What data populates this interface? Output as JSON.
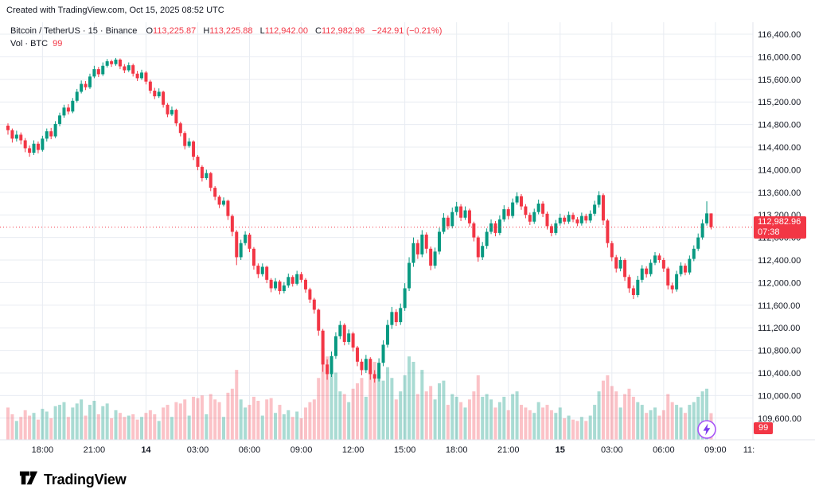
{
  "header": {
    "created_text": "Created with TradingView.com, Oct 15, 2025 08:52 UTC"
  },
  "legend": {
    "title": "Bitcoin / TetherUS · 15 · Binance",
    "o_label": "O",
    "o_value": "113,225.87",
    "h_label": "H",
    "h_value": "113,225.88",
    "l_label": "L",
    "l_value": "112,942.00",
    "c_label": "C",
    "c_value": "112,982.96",
    "change": "−242.91 (−0.21%)",
    "vol_title": "Vol · BTC",
    "vol_value": "99"
  },
  "price_axis": {
    "current_price_label": "112,982.96",
    "countdown": "07:38",
    "volume_badge": "99"
  },
  "footer": {
    "brand": "TradingView"
  },
  "colors": {
    "up": "#089981",
    "down": "#F23645",
    "vol_up": "rgba(8,153,129,0.35)",
    "vol_down": "rgba(242,54,69,0.30)",
    "grid": "#e8ecf2",
    "axis_text": "#131722",
    "border": "#e0e3eb",
    "badge_red": "#F23645",
    "accent_purple": "#9333ea"
  },
  "chart_data": {
    "type": "candlestick",
    "symbol": "Bitcoin / TetherUS",
    "exchange": "Binance",
    "interval": "15m",
    "x_axis_start_utc": "2025-10-13 16:00",
    "minutes_per_candle": 15,
    "ylim": [
      109600,
      116400
    ],
    "grid": true,
    "price_ticks": [
      116400,
      116000,
      115600,
      115200,
      114800,
      114400,
      114000,
      113600,
      113200,
      112800,
      112400,
      112000,
      111600,
      111200,
      110800,
      110400,
      110000,
      109600
    ],
    "time_ticks": [
      {
        "i": 8,
        "label": "18:00",
        "bold": false
      },
      {
        "i": 20,
        "label": "21:00",
        "bold": false
      },
      {
        "i": 32,
        "label": "14",
        "bold": true
      },
      {
        "i": 44,
        "label": "03:00",
        "bold": false
      },
      {
        "i": 56,
        "label": "06:00",
        "bold": false
      },
      {
        "i": 68,
        "label": "09:00",
        "bold": false
      },
      {
        "i": 80,
        "label": "12:00",
        "bold": false
      },
      {
        "i": 92,
        "label": "15:00",
        "bold": false
      },
      {
        "i": 104,
        "label": "18:00",
        "bold": false
      },
      {
        "i": 116,
        "label": "21:00",
        "bold": false
      },
      {
        "i": 128,
        "label": "15",
        "bold": true
      },
      {
        "i": 140,
        "label": "03:00",
        "bold": false
      },
      {
        "i": 152,
        "label": "06:00",
        "bold": false
      },
      {
        "i": 164,
        "label": "09:00",
        "bold": false
      },
      {
        "i": 172,
        "label": "11:",
        "bold": false,
        "grid": false,
        "x": 941
      }
    ],
    "ohlcv_order": [
      "open",
      "high",
      "low",
      "close",
      "volume"
    ],
    "candles": [
      [
        114780,
        114820,
        114620,
        114700,
        120
      ],
      [
        114700,
        114730,
        114480,
        114550,
        95
      ],
      [
        114550,
        114690,
        114500,
        114620,
        70
      ],
      [
        114620,
        114660,
        114450,
        114520,
        85
      ],
      [
        114520,
        114560,
        114310,
        114380,
        110
      ],
      [
        114380,
        114430,
        114230,
        114300,
        90
      ],
      [
        114300,
        114520,
        114260,
        114460,
        100
      ],
      [
        114460,
        114500,
        114290,
        114350,
        75
      ],
      [
        114350,
        114600,
        114320,
        114550,
        115
      ],
      [
        114550,
        114730,
        114500,
        114680,
        105
      ],
      [
        114680,
        114740,
        114540,
        114590,
        80
      ],
      [
        114590,
        114860,
        114560,
        114810,
        125
      ],
      [
        114810,
        115010,
        114770,
        114960,
        130
      ],
      [
        114960,
        115150,
        114920,
        115100,
        140
      ],
      [
        115100,
        115160,
        114980,
        115030,
        85
      ],
      [
        115030,
        115270,
        115000,
        115220,
        120
      ],
      [
        115220,
        115430,
        115190,
        115380,
        135
      ],
      [
        115380,
        115580,
        115350,
        115520,
        150
      ],
      [
        115520,
        115570,
        115410,
        115460,
        90
      ],
      [
        115460,
        115700,
        115430,
        115650,
        130
      ],
      [
        115650,
        115840,
        115620,
        115780,
        145
      ],
      [
        115780,
        115820,
        115640,
        115690,
        95
      ],
      [
        115690,
        115900,
        115660,
        115840,
        125
      ],
      [
        115840,
        115960,
        115810,
        115920,
        135
      ],
      [
        115920,
        115950,
        115820,
        115870,
        80
      ],
      [
        115870,
        115980,
        115840,
        115950,
        110
      ],
      [
        115950,
        115970,
        115780,
        115830,
        100
      ],
      [
        115830,
        115870,
        115710,
        115760,
        85
      ],
      [
        115760,
        115900,
        115730,
        115850,
        90
      ],
      [
        115850,
        115880,
        115650,
        115700,
        95
      ],
      [
        115700,
        115750,
        115570,
        115620,
        75
      ],
      [
        115620,
        115770,
        115590,
        115720,
        85
      ],
      [
        115720,
        115750,
        115510,
        115560,
        100
      ],
      [
        115560,
        115590,
        115350,
        115400,
        110
      ],
      [
        115400,
        115450,
        115250,
        115300,
        95
      ],
      [
        115300,
        115440,
        115270,
        115380,
        70
      ],
      [
        115380,
        115400,
        115100,
        115150,
        120
      ],
      [
        115150,
        115180,
        114930,
        114980,
        130
      ],
      [
        114980,
        115120,
        114950,
        115060,
        85
      ],
      [
        115060,
        115080,
        114770,
        114820,
        140
      ],
      [
        114820,
        114850,
        114590,
        114650,
        135
      ],
      [
        114650,
        114680,
        114360,
        114420,
        150
      ],
      [
        114420,
        114560,
        114390,
        114500,
        90
      ],
      [
        114500,
        114520,
        114170,
        114230,
        160
      ],
      [
        114230,
        114260,
        113990,
        114050,
        155
      ],
      [
        114050,
        114080,
        113790,
        113850,
        165
      ],
      [
        113850,
        114000,
        113820,
        113940,
        95
      ],
      [
        113940,
        113960,
        113620,
        113680,
        170
      ],
      [
        113680,
        113710,
        113460,
        113520,
        150
      ],
      [
        113520,
        113550,
        113320,
        113380,
        140
      ],
      [
        113380,
        113510,
        113350,
        113450,
        85
      ],
      [
        113450,
        113470,
        113110,
        113180,
        175
      ],
      [
        113180,
        113210,
        112820,
        112900,
        190
      ],
      [
        112900,
        112930,
        112310,
        112450,
        260
      ],
      [
        112450,
        112760,
        112400,
        112700,
        150
      ],
      [
        112700,
        112910,
        112660,
        112850,
        120
      ],
      [
        112850,
        112880,
        112540,
        112600,
        130
      ],
      [
        112600,
        112630,
        112230,
        112300,
        160
      ],
      [
        112300,
        112340,
        112080,
        112150,
        145
      ],
      [
        112150,
        112340,
        112110,
        112280,
        90
      ],
      [
        112280,
        112300,
        111990,
        112050,
        150
      ],
      [
        112050,
        112080,
        111830,
        111900,
        155
      ],
      [
        111900,
        112080,
        111860,
        112020,
        100
      ],
      [
        112020,
        112050,
        111790,
        111850,
        130
      ],
      [
        111850,
        112010,
        111810,
        111950,
        95
      ],
      [
        111950,
        112160,
        111910,
        112100,
        110
      ],
      [
        112100,
        112130,
        111930,
        111980,
        85
      ],
      [
        111980,
        112210,
        111950,
        112150,
        105
      ],
      [
        112150,
        112190,
        112000,
        112050,
        80
      ],
      [
        112050,
        112080,
        111820,
        111880,
        120
      ],
      [
        111880,
        111910,
        111640,
        111700,
        140
      ],
      [
        111700,
        111730,
        111450,
        111520,
        150
      ],
      [
        111520,
        111540,
        111060,
        111150,
        230
      ],
      [
        111150,
        111180,
        110420,
        110550,
        340
      ],
      [
        110550,
        110640,
        110280,
        110380,
        310
      ],
      [
        110380,
        110780,
        110330,
        110700,
        280
      ],
      [
        110700,
        111120,
        110650,
        111050,
        250
      ],
      [
        111050,
        111320,
        111000,
        111250,
        180
      ],
      [
        111250,
        111280,
        110890,
        110950,
        170
      ],
      [
        110950,
        111170,
        110900,
        111100,
        140
      ],
      [
        111100,
        111130,
        110780,
        110850,
        190
      ],
      [
        110850,
        110880,
        110520,
        110600,
        210
      ],
      [
        110600,
        110650,
        110360,
        110450,
        230
      ],
      [
        110450,
        110720,
        110400,
        110650,
        160
      ],
      [
        110650,
        110680,
        110280,
        110380,
        260
      ],
      [
        110380,
        110450,
        110230,
        110300,
        290
      ],
      [
        110300,
        110660,
        110250,
        110580,
        240
      ],
      [
        110580,
        110980,
        110520,
        110900,
        220
      ],
      [
        110900,
        111340,
        110850,
        111250,
        270
      ],
      [
        111250,
        111570,
        111180,
        111480,
        230
      ],
      [
        111480,
        111530,
        111230,
        111300,
        150
      ],
      [
        111300,
        111630,
        111250,
        111550,
        180
      ],
      [
        111550,
        111990,
        111500,
        111900,
        240
      ],
      [
        111900,
        112450,
        111850,
        112350,
        310
      ],
      [
        112350,
        112800,
        112280,
        112700,
        290
      ],
      [
        112700,
        112760,
        112420,
        112500,
        170
      ],
      [
        112500,
        112930,
        112450,
        112850,
        260
      ],
      [
        112850,
        112890,
        112520,
        112600,
        180
      ],
      [
        112600,
        112640,
        112220,
        112300,
        200
      ],
      [
        112300,
        112620,
        112250,
        112550,
        150
      ],
      [
        112550,
        112970,
        112500,
        112900,
        210
      ],
      [
        112900,
        113230,
        112860,
        113150,
        220
      ],
      [
        113150,
        113190,
        112940,
        113000,
        130
      ],
      [
        113000,
        113330,
        112960,
        113250,
        170
      ],
      [
        113250,
        113430,
        113190,
        113350,
        160
      ],
      [
        113350,
        113390,
        113090,
        113150,
        140
      ],
      [
        113150,
        113350,
        113110,
        113280,
        120
      ],
      [
        113280,
        113310,
        112990,
        113050,
        150
      ],
      [
        113050,
        113080,
        112730,
        112800,
        180
      ],
      [
        112800,
        112830,
        112370,
        112450,
        240
      ],
      [
        112450,
        112720,
        112400,
        112650,
        160
      ],
      [
        112650,
        112960,
        112600,
        112900,
        170
      ],
      [
        112900,
        113120,
        112860,
        113050,
        150
      ],
      [
        113050,
        113090,
        112820,
        112880,
        120
      ],
      [
        112880,
        113190,
        112840,
        113120,
        140
      ],
      [
        113120,
        113370,
        113080,
        113300,
        160
      ],
      [
        113300,
        113340,
        113120,
        113180,
        110
      ],
      [
        113180,
        113490,
        113140,
        113420,
        170
      ],
      [
        113420,
        113600,
        113380,
        113530,
        180
      ],
      [
        113530,
        113570,
        113290,
        113350,
        130
      ],
      [
        113350,
        113390,
        113140,
        113200,
        120
      ],
      [
        113200,
        113240,
        113020,
        113080,
        110
      ],
      [
        113080,
        113310,
        113040,
        113250,
        100
      ],
      [
        113250,
        113470,
        113210,
        113400,
        140
      ],
      [
        113400,
        113440,
        113160,
        113220,
        120
      ],
      [
        113220,
        113260,
        112940,
        113000,
        130
      ],
      [
        113000,
        113040,
        112820,
        112880,
        110
      ],
      [
        112880,
        113110,
        112840,
        113050,
        100
      ],
      [
        113050,
        113220,
        113010,
        113150,
        120
      ],
      [
        113150,
        113190,
        113030,
        113080,
        80
      ],
      [
        113080,
        113260,
        113040,
        113200,
        90
      ],
      [
        113200,
        113240,
        113070,
        113120,
        75
      ],
      [
        113120,
        113160,
        113000,
        113050,
        70
      ],
      [
        113050,
        113240,
        113010,
        113180,
        85
      ],
      [
        113180,
        113220,
        113050,
        113100,
        70
      ],
      [
        113100,
        113280,
        113060,
        113220,
        90
      ],
      [
        113220,
        113450,
        113180,
        113380,
        130
      ],
      [
        113380,
        113620,
        113330,
        113550,
        180
      ],
      [
        113550,
        113580,
        113020,
        113100,
        220
      ],
      [
        113100,
        113130,
        112620,
        112700,
        240
      ],
      [
        112700,
        112740,
        112380,
        112450,
        200
      ],
      [
        112450,
        112490,
        112180,
        112250,
        180
      ],
      [
        112250,
        112460,
        112200,
        112400,
        120
      ],
      [
        112400,
        112430,
        112030,
        112100,
        170
      ],
      [
        112100,
        112140,
        111820,
        111900,
        190
      ],
      [
        111900,
        111950,
        111710,
        111780,
        160
      ],
      [
        111780,
        112120,
        111740,
        112050,
        140
      ],
      [
        112050,
        112310,
        112000,
        112250,
        130
      ],
      [
        112250,
        112290,
        112090,
        112150,
        100
      ],
      [
        112150,
        112410,
        112110,
        112350,
        110
      ],
      [
        112350,
        112540,
        112310,
        112480,
        120
      ],
      [
        112480,
        112520,
        112350,
        112400,
        90
      ],
      [
        112400,
        112440,
        112190,
        112250,
        110
      ],
      [
        112250,
        112280,
        111880,
        111950,
        170
      ],
      [
        111950,
        112000,
        111810,
        111880,
        140
      ],
      [
        111880,
        112210,
        111840,
        112150,
        130
      ],
      [
        112150,
        112360,
        112110,
        112300,
        120
      ],
      [
        112300,
        112340,
        112130,
        112180,
        100
      ],
      [
        112180,
        112480,
        112140,
        112420,
        130
      ],
      [
        112420,
        112660,
        112380,
        112600,
        140
      ],
      [
        112600,
        112870,
        112560,
        112800,
        160
      ],
      [
        112800,
        113120,
        112760,
        113050,
        180
      ],
      [
        113050,
        113440,
        113010,
        113225.87,
        190
      ],
      [
        113225.87,
        113225.88,
        112942,
        112982.96,
        99
      ]
    ],
    "current": {
      "open": 113225.87,
      "high": 113225.88,
      "low": 112942.0,
      "close": 112982.96,
      "change": -242.91,
      "change_pct": -0.21,
      "volume_btc": 99,
      "countdown": "07:38"
    },
    "price_line": 112982.96
  }
}
